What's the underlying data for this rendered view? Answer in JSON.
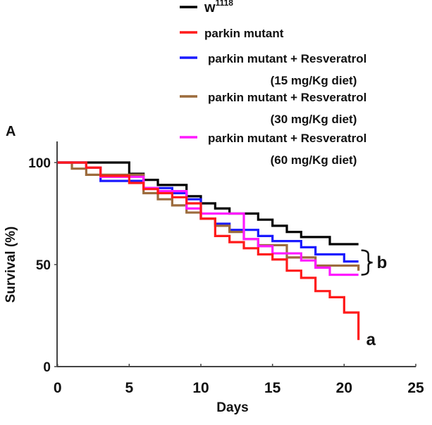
{
  "chart_data": {
    "type": "line",
    "step": true,
    "panel_label": "A",
    "title": "",
    "xlabel": "Days",
    "ylabel": "Survival (%)",
    "xlim": [
      0,
      25
    ],
    "ylim": [
      0,
      100
    ],
    "x_ticks": [
      0,
      5,
      10,
      15,
      20,
      25
    ],
    "y_ticks": [
      0,
      50,
      100
    ],
    "grid": false,
    "legend_position": "top",
    "legend": [
      {
        "name": "w",
        "superscript": "1118",
        "color": "#000000"
      },
      {
        "name": "parkin mutant",
        "color": "#ff1a1a"
      },
      {
        "name": "parkin mutant + Resveratrol",
        "subtext": "(15 mg/Kg diet)",
        "color": "#1a1aff"
      },
      {
        "name": "parkin mutant + Resveratrol",
        "subtext": "(30 mg/Kg diet)",
        "color": "#9c6b3c"
      },
      {
        "name": "parkin mutant + Resveratrol",
        "subtext": "(60 mg/Kg diet)",
        "color": "#ff1aff"
      }
    ],
    "series": [
      {
        "name": "w1118",
        "color": "#000000",
        "x": [
          0,
          5,
          6,
          7,
          9,
          10,
          11,
          12,
          14,
          15,
          16,
          17,
          19,
          21
        ],
        "y": [
          100,
          94.5,
          91.5,
          89,
          83.5,
          80,
          77.5,
          75,
          72,
          69,
          66,
          63.5,
          60,
          60
        ]
      },
      {
        "name": "parkin mutant + Resveratrol (15 mg/Kg diet)",
        "color": "#1a1aff",
        "x": [
          0,
          2,
          3,
          6,
          8,
          9,
          10,
          11,
          12,
          14,
          15,
          17,
          18,
          20,
          21
        ],
        "y": [
          100,
          97.5,
          91,
          87.5,
          85,
          82,
          72.5,
          70,
          67,
          64,
          61.5,
          58.5,
          55,
          51.5,
          51.5
        ]
      },
      {
        "name": "parkin mutant + Resveratrol (30 mg/Kg diet)",
        "color": "#9c6b3c",
        "x": [
          0,
          1,
          2,
          6,
          7,
          8,
          9,
          10,
          11,
          12,
          13,
          14,
          16,
          18,
          21,
          21
        ],
        "y": [
          100,
          97,
          94,
          85,
          82,
          79,
          75.5,
          72.5,
          69,
          66,
          62.5,
          59.5,
          53.5,
          49.5,
          49.5,
          47
        ]
      },
      {
        "name": "parkin mutant + Resveratrol (60 mg/Kg diet)",
        "color": "#ff1aff",
        "x": [
          0,
          2,
          3,
          6,
          7,
          9,
          10,
          13,
          14,
          15,
          17,
          18,
          19,
          21
        ],
        "y": [
          100,
          97.5,
          93,
          87.5,
          86,
          77.5,
          75,
          62.5,
          59,
          55.5,
          52,
          48.5,
          45,
          45
        ]
      },
      {
        "name": "parkin mutant",
        "color": "#ff1a1a",
        "x": [
          0,
          2,
          3,
          5,
          6,
          7,
          8,
          9,
          10,
          11,
          12,
          13,
          14,
          15,
          16,
          17,
          18,
          19,
          20,
          21,
          21
        ],
        "y": [
          100,
          97.5,
          93.5,
          90,
          87,
          85,
          83,
          80,
          72.5,
          64,
          61,
          58,
          55,
          52.5,
          47,
          43.5,
          37,
          34,
          26.5,
          19,
          13
        ]
      }
    ],
    "annotations": [
      {
        "text": "a",
        "attached_to": "parkin mutant",
        "at": [
          21,
          13
        ]
      },
      {
        "text": "b",
        "attached_to": "Resveratrol groups (bracket)",
        "range_y": [
          45,
          57
        ],
        "at": [
          21,
          51
        ]
      }
    ]
  }
}
